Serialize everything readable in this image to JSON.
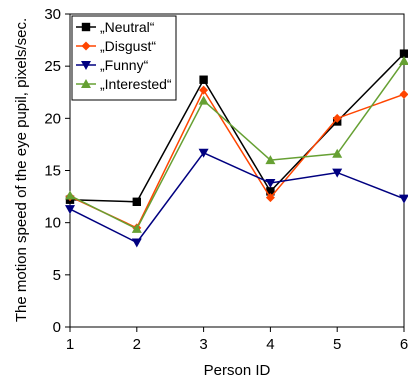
{
  "chart_data": {
    "type": "line",
    "title": "",
    "xlabel": "Person ID",
    "ylabel": "The motion speed of the eye pupil, pixels/sec.",
    "x": [
      1,
      2,
      3,
      4,
      5,
      6
    ],
    "xlim": [
      1,
      6
    ],
    "ylim": [
      0,
      30
    ],
    "yticks": [
      0,
      5,
      10,
      15,
      20,
      25,
      30
    ],
    "grid": false,
    "legend_position": "top-left",
    "series": [
      {
        "name": "„Neutral“",
        "color": "#000000",
        "marker": "square",
        "values": [
          12.2,
          12.0,
          23.7,
          13.0,
          19.7,
          26.2
        ]
      },
      {
        "name": "„Disgust“",
        "color": "#ff4500",
        "marker": "diamond",
        "values": [
          12.5,
          9.5,
          22.7,
          12.4,
          20.0,
          22.3
        ]
      },
      {
        "name": "„Funny“",
        "color": "#000080",
        "marker": "triangle-down",
        "values": [
          11.3,
          8.1,
          16.7,
          13.8,
          14.8,
          12.3
        ]
      },
      {
        "name": "„Interested“",
        "color": "#66a033",
        "marker": "triangle-up",
        "values": [
          12.6,
          9.4,
          21.7,
          16.0,
          16.6,
          25.5
        ]
      }
    ]
  }
}
